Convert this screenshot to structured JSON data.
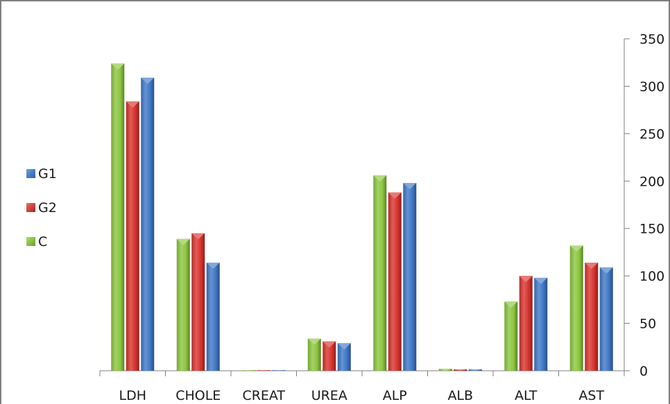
{
  "chart_data": {
    "type": "bar",
    "title": "",
    "xlabel": "",
    "ylabel": "",
    "categories": [
      "LDH",
      "CHOLE",
      "CREAT",
      "UREA",
      "ALP",
      "ALB",
      "ALT",
      "AST"
    ],
    "series": [
      {
        "name": "C",
        "color": "#8cc63f",
        "values": [
          324,
          139,
          0.5,
          34,
          206,
          2,
          73,
          132
        ]
      },
      {
        "name": "G2",
        "color": "#d9332e",
        "values": [
          284,
          145,
          0.5,
          31,
          188,
          1.5,
          100,
          114
        ]
      },
      {
        "name": "G1",
        "color": "#3f78c8",
        "values": [
          309,
          114,
          0.5,
          29,
          198,
          1.5,
          98,
          109
        ]
      }
    ],
    "ylim": [
      0,
      350
    ],
    "yticks": [
      0,
      50,
      100,
      150,
      200,
      250,
      300,
      350
    ],
    "y_axis_side": "right",
    "grid": false,
    "legend": {
      "position": "left",
      "items": [
        "G1",
        "G2",
        "C"
      ]
    }
  }
}
